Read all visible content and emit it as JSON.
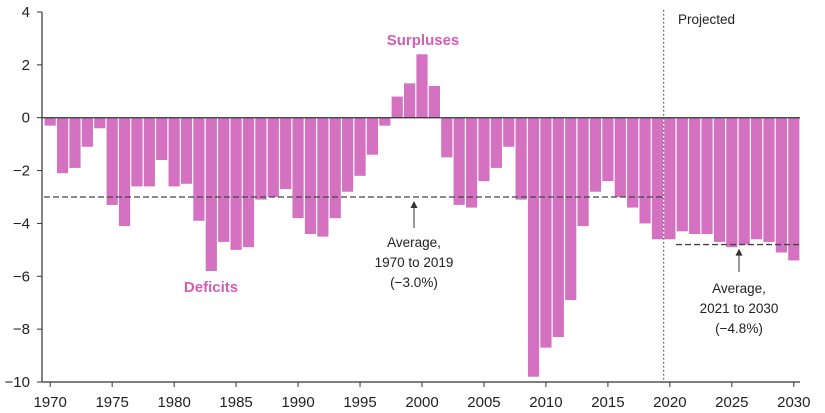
{
  "chart_data": {
    "type": "bar",
    "x": [
      1970,
      1971,
      1972,
      1973,
      1974,
      1975,
      1976,
      1977,
      1978,
      1979,
      1980,
      1981,
      1982,
      1983,
      1984,
      1985,
      1986,
      1987,
      1988,
      1989,
      1990,
      1991,
      1992,
      1993,
      1994,
      1995,
      1996,
      1997,
      1998,
      1999,
      2000,
      2001,
      2002,
      2003,
      2004,
      2005,
      2006,
      2007,
      2008,
      2009,
      2010,
      2011,
      2012,
      2013,
      2014,
      2015,
      2016,
      2017,
      2018,
      2019,
      2020,
      2021,
      2022,
      2023,
      2024,
      2025,
      2026,
      2027,
      2028,
      2029,
      2030
    ],
    "values": [
      -0.3,
      -2.1,
      -1.9,
      -1.1,
      -0.4,
      -3.3,
      -4.1,
      -2.6,
      -2.6,
      -1.6,
      -2.6,
      -2.5,
      -3.9,
      -5.8,
      -4.7,
      -5.0,
      -4.9,
      -3.1,
      -3.0,
      -2.7,
      -3.8,
      -4.4,
      -4.5,
      -3.8,
      -2.8,
      -2.2,
      -1.4,
      -0.3,
      0.8,
      1.3,
      2.4,
      1.2,
      -1.5,
      -3.3,
      -3.4,
      -2.4,
      -1.9,
      -1.1,
      -3.1,
      -9.8,
      -8.7,
      -8.3,
      -6.9,
      -4.1,
      -2.8,
      -2.4,
      -3.0,
      -3.4,
      -4.0,
      -4.6,
      -4.6,
      -4.3,
      -4.4,
      -4.4,
      -4.7,
      -4.9,
      -4.8,
      -4.6,
      -4.7,
      -5.1,
      -5.4
    ],
    "ylim": [
      -10,
      4
    ],
    "yticks": [
      4,
      2,
      0,
      -2,
      -4,
      -6,
      -8,
      -10
    ],
    "ytick_labels": [
      "4",
      "2",
      "0",
      "−2",
      "−4",
      "−6",
      "−8",
      "−10"
    ],
    "xlim": [
      1970,
      2030
    ],
    "xticks": [
      1970,
      1975,
      1980,
      1985,
      1990,
      1995,
      2000,
      2005,
      2010,
      2015,
      2020,
      2025,
      2030
    ],
    "xtick_labels": [
      "1970",
      "1975",
      "1980",
      "1985",
      "1990",
      "1995",
      "2000",
      "2005",
      "2010",
      "2015",
      "2020",
      "2025",
      "2030"
    ],
    "bar_color": "#d471c1",
    "grid": false,
    "projection_start": 2019.5,
    "reference_lines": [
      {
        "from": 1970,
        "to": 2019,
        "value": -3.0
      },
      {
        "from": 2021,
        "to": 2030,
        "value": -4.8
      }
    ]
  },
  "labels": {
    "surpluses": "Surpluses",
    "deficits": "Deficits",
    "projected": "Projected",
    "avg1": [
      "Average,",
      "1970 to 2019",
      "(−3.0%)"
    ],
    "avg2": [
      "Average,",
      "2021 to 2030",
      "(−4.8%)"
    ]
  },
  "colors": {
    "bars": "#d471c1",
    "category_text": "#d45eb6",
    "dashed": "#444444",
    "axis": "#333333"
  }
}
